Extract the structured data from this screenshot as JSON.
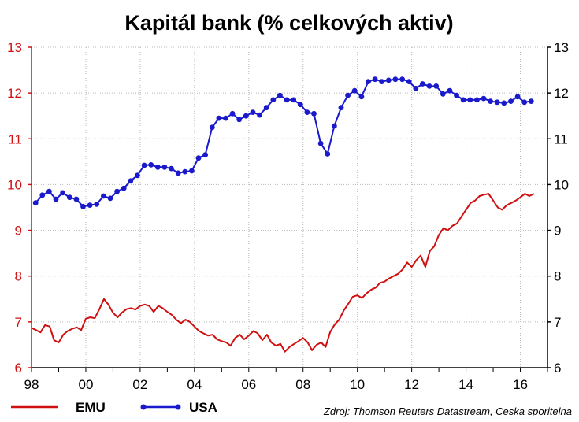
{
  "chart_data": {
    "type": "line",
    "title": "Kapitál bank (% celkových aktiv)",
    "x_range": [
      1998,
      2017
    ],
    "x_ticks": [
      {
        "value": 1998,
        "label": "98"
      },
      {
        "value": 2000,
        "label": "00"
      },
      {
        "value": 2002,
        "label": "02"
      },
      {
        "value": 2004,
        "label": "04"
      },
      {
        "value": 2006,
        "label": "06"
      },
      {
        "value": 2008,
        "label": "08"
      },
      {
        "value": 2010,
        "label": "10"
      },
      {
        "value": 2012,
        "label": "12"
      },
      {
        "value": 2014,
        "label": "14"
      },
      {
        "value": 2016,
        "label": "16"
      }
    ],
    "y_left": {
      "range": [
        6,
        13
      ],
      "ticks": [
        6,
        7,
        8,
        9,
        10,
        11,
        12,
        13
      ],
      "color": "#d01010"
    },
    "y_right": {
      "range": [
        6,
        13
      ],
      "ticks": [
        6,
        7,
        8,
        9,
        10,
        11,
        12,
        13
      ]
    },
    "grid": true,
    "legend_position": "bottom-left",
    "source": "Zdroj: Thomson Reuters Datastream, Ceska sporitelna",
    "series": [
      {
        "name": "EMU",
        "color": "#d01010",
        "marker": "none",
        "x": [
          1998.0,
          1998.17,
          1998.33,
          1998.5,
          1998.67,
          1998.83,
          1999.0,
          1999.17,
          1999.33,
          1999.5,
          1999.67,
          1999.83,
          2000.0,
          2000.17,
          2000.33,
          2000.5,
          2000.67,
          2000.83,
          2001.0,
          2001.17,
          2001.33,
          2001.5,
          2001.67,
          2001.83,
          2002.0,
          2002.17,
          2002.33,
          2002.5,
          2002.67,
          2002.83,
          2003.0,
          2003.17,
          2003.33,
          2003.5,
          2003.67,
          2003.83,
          2004.0,
          2004.17,
          2004.33,
          2004.5,
          2004.67,
          2004.83,
          2005.0,
          2005.17,
          2005.33,
          2005.5,
          2005.67,
          2005.83,
          2006.0,
          2006.17,
          2006.33,
          2006.5,
          2006.67,
          2006.83,
          2007.0,
          2007.17,
          2007.33,
          2007.5,
          2007.67,
          2007.83,
          2008.0,
          2008.17,
          2008.33,
          2008.5,
          2008.67,
          2008.83,
          2009.0,
          2009.17,
          2009.33,
          2009.5,
          2009.67,
          2009.83,
          2010.0,
          2010.17,
          2010.33,
          2010.5,
          2010.67,
          2010.83,
          2011.0,
          2011.17,
          2011.33,
          2011.5,
          2011.67,
          2011.83,
          2012.0,
          2012.17,
          2012.33,
          2012.5,
          2012.67,
          2012.83,
          2013.0,
          2013.17,
          2013.33,
          2013.5,
          2013.67,
          2013.83,
          2014.0,
          2014.17,
          2014.33,
          2014.5,
          2014.67,
          2014.83,
          2015.0,
          2015.17,
          2015.33,
          2015.5,
          2015.67,
          2015.83,
          2016.0,
          2016.17,
          2016.33,
          2016.5
        ],
        "values": [
          6.87,
          6.82,
          6.77,
          6.93,
          6.9,
          6.6,
          6.55,
          6.72,
          6.8,
          6.85,
          6.88,
          6.82,
          7.07,
          7.1,
          7.08,
          7.28,
          7.5,
          7.38,
          7.2,
          7.1,
          7.2,
          7.28,
          7.3,
          7.27,
          7.35,
          7.38,
          7.35,
          7.22,
          7.35,
          7.3,
          7.22,
          7.15,
          7.05,
          6.97,
          7.05,
          7.0,
          6.9,
          6.8,
          6.75,
          6.7,
          6.72,
          6.62,
          6.58,
          6.55,
          6.48,
          6.65,
          6.72,
          6.62,
          6.7,
          6.8,
          6.75,
          6.6,
          6.72,
          6.55,
          6.48,
          6.52,
          6.35,
          6.45,
          6.52,
          6.58,
          6.65,
          6.55,
          6.38,
          6.5,
          6.55,
          6.45,
          6.78,
          6.95,
          7.05,
          7.25,
          7.4,
          7.55,
          7.58,
          7.52,
          7.62,
          7.7,
          7.75,
          7.85,
          7.88,
          7.95,
          8.0,
          8.05,
          8.15,
          8.3,
          8.2,
          8.35,
          8.45,
          8.2,
          8.55,
          8.65,
          8.9,
          9.05,
          9.0,
          9.1,
          9.15,
          9.3,
          9.45,
          9.6,
          9.65,
          9.75,
          9.78,
          9.8,
          9.65,
          9.5,
          9.45,
          9.55,
          9.6,
          9.65,
          9.72,
          9.8,
          9.75,
          9.8
        ],
        "y_axis": "left"
      },
      {
        "name": "USA",
        "color": "#1a1acc",
        "marker": "circle",
        "x": [
          1998.15,
          1998.4,
          1998.65,
          1998.9,
          1999.15,
          1999.4,
          1999.65,
          1999.9,
          2000.15,
          2000.4,
          2000.65,
          2000.9,
          2001.15,
          2001.4,
          2001.65,
          2001.9,
          2002.15,
          2002.4,
          2002.65,
          2002.9,
          2003.15,
          2003.4,
          2003.65,
          2003.9,
          2004.15,
          2004.4,
          2004.65,
          2004.9,
          2005.15,
          2005.4,
          2005.65,
          2005.9,
          2006.15,
          2006.4,
          2006.65,
          2006.9,
          2007.15,
          2007.4,
          2007.65,
          2007.9,
          2008.15,
          2008.4,
          2008.65,
          2008.9,
          2009.15,
          2009.4,
          2009.65,
          2009.9,
          2010.15,
          2010.4,
          2010.65,
          2010.9,
          2011.15,
          2011.4,
          2011.65,
          2011.9,
          2012.15,
          2012.4,
          2012.65,
          2012.9,
          2013.15,
          2013.4,
          2013.65,
          2013.9,
          2014.15,
          2014.4,
          2014.65,
          2014.9,
          2015.15,
          2015.4,
          2015.65,
          2015.9,
          2016.15,
          2016.4
        ],
        "values": [
          9.6,
          9.77,
          9.85,
          9.68,
          9.82,
          9.72,
          9.68,
          9.52,
          9.55,
          9.57,
          9.75,
          9.7,
          9.85,
          9.92,
          10.08,
          10.2,
          10.42,
          10.43,
          10.38,
          10.38,
          10.35,
          10.25,
          10.28,
          10.3,
          10.58,
          10.65,
          11.25,
          11.45,
          11.45,
          11.55,
          11.42,
          11.5,
          11.58,
          11.52,
          11.68,
          11.85,
          11.95,
          11.85,
          11.85,
          11.75,
          11.58,
          11.55,
          10.9,
          10.67,
          11.28,
          11.68,
          11.95,
          12.05,
          11.92,
          12.25,
          12.3,
          12.25,
          12.28,
          12.3,
          12.3,
          12.25,
          12.1,
          12.2,
          12.15,
          12.15,
          11.98,
          12.05,
          11.95,
          11.85,
          11.85,
          11.85,
          11.88,
          11.82,
          11.8,
          11.78,
          11.82,
          11.92,
          11.8,
          11.82
        ],
        "y_axis": "right"
      }
    ]
  }
}
